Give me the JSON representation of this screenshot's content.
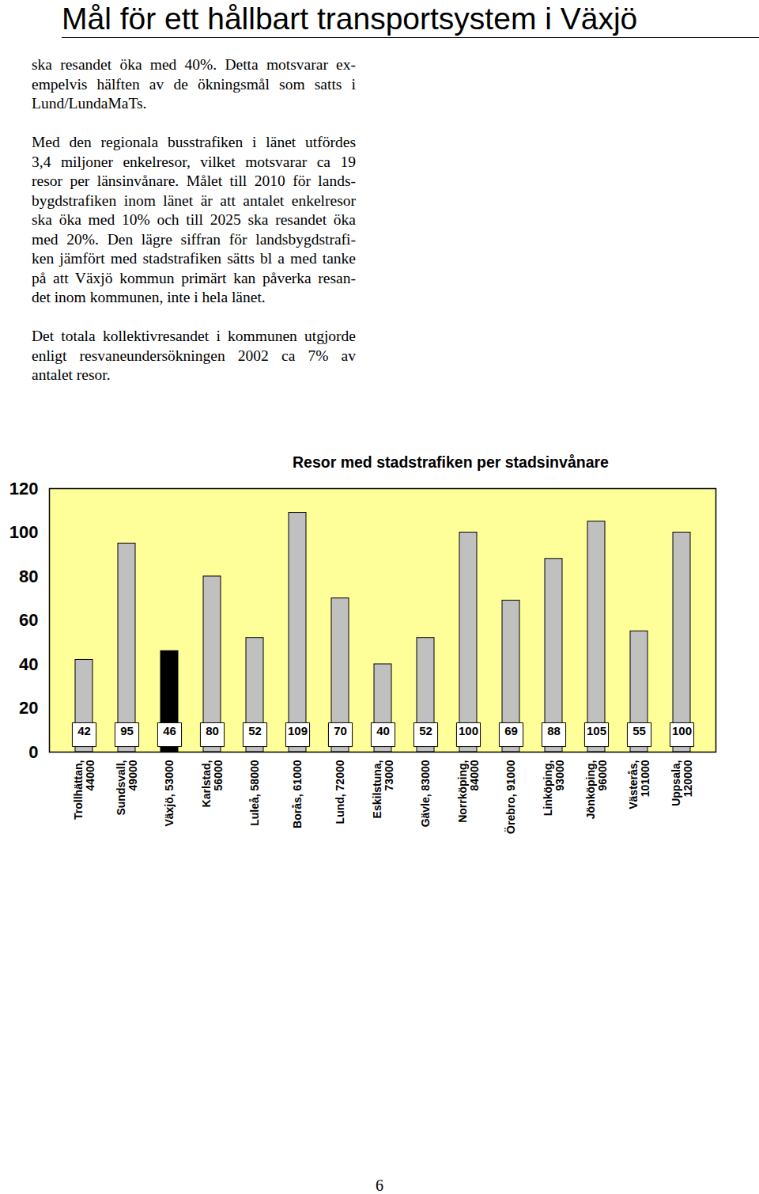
{
  "header": {
    "title": "Mål för ett hållbart transportsystem i Växjö"
  },
  "paragraphs": [
    [
      "ska resandet öka med 40%. Detta motsvarar ex-",
      "empelvis hälften av de ökningsmål som satts i",
      "Lund/LundaMaTs."
    ],
    [
      "Med den regionala busstrafiken i länet utfördes",
      "3,4 miljoner enkelresor, vilket motsvarar ca 19",
      "resor per länsinvånare. Målet till 2010 för lands-",
      "bygdstrafiken inom länet är att antalet enkelresor",
      "ska öka med 10% och till 2025 ska resandet öka",
      "med 20%. Den lägre siffran för landsbygdstrafi-",
      "ken jämfört med stadstrafiken sätts bl a med tanke",
      "på att Växjö kommun primärt kan påverka resan-",
      "det inom kommunen, inte i hela länet."
    ],
    [
      "Det totala kollektivresandet i kommunen utgjorde",
      "enligt resvaneundersökningen 2002 ca 7% av",
      "antalet resor."
    ]
  ],
  "chart_data": {
    "type": "bar",
    "title": "Resor med stadstrafiken per stadsinvånare",
    "categories": [
      "Trollhättan, 44000",
      "Sundsvall, 49000",
      "Växjö, 53000",
      "Karlstad, 56000",
      "Luleå, 58000",
      "Borås, 61000",
      "Lund, 72000",
      "Eskilstuna, 73000",
      "Gävle, 83000",
      "Norrköping, 84000",
      "Örebro, 91000",
      "Linköping, 93000",
      "Jönköping, 96000",
      "Västerås, 101000",
      "Uppsala, 120000"
    ],
    "values": [
      42,
      95,
      46,
      80,
      52,
      109,
      70,
      40,
      52,
      100,
      69,
      88,
      105,
      55,
      100
    ],
    "colors": [
      "#c0c0c0",
      "#c0c0c0",
      "#000000",
      "#c0c0c0",
      "#c0c0c0",
      "#c0c0c0",
      "#c0c0c0",
      "#c0c0c0",
      "#c0c0c0",
      "#c0c0c0",
      "#c0c0c0",
      "#c0c0c0",
      "#c0c0c0",
      "#c0c0c0",
      "#c0c0c0"
    ],
    "ylim": [
      0,
      120
    ],
    "yticks": [
      0,
      20,
      40,
      60,
      80,
      100,
      120
    ],
    "grid": false,
    "data_labels": true
  },
  "footer": {
    "page": "6"
  }
}
